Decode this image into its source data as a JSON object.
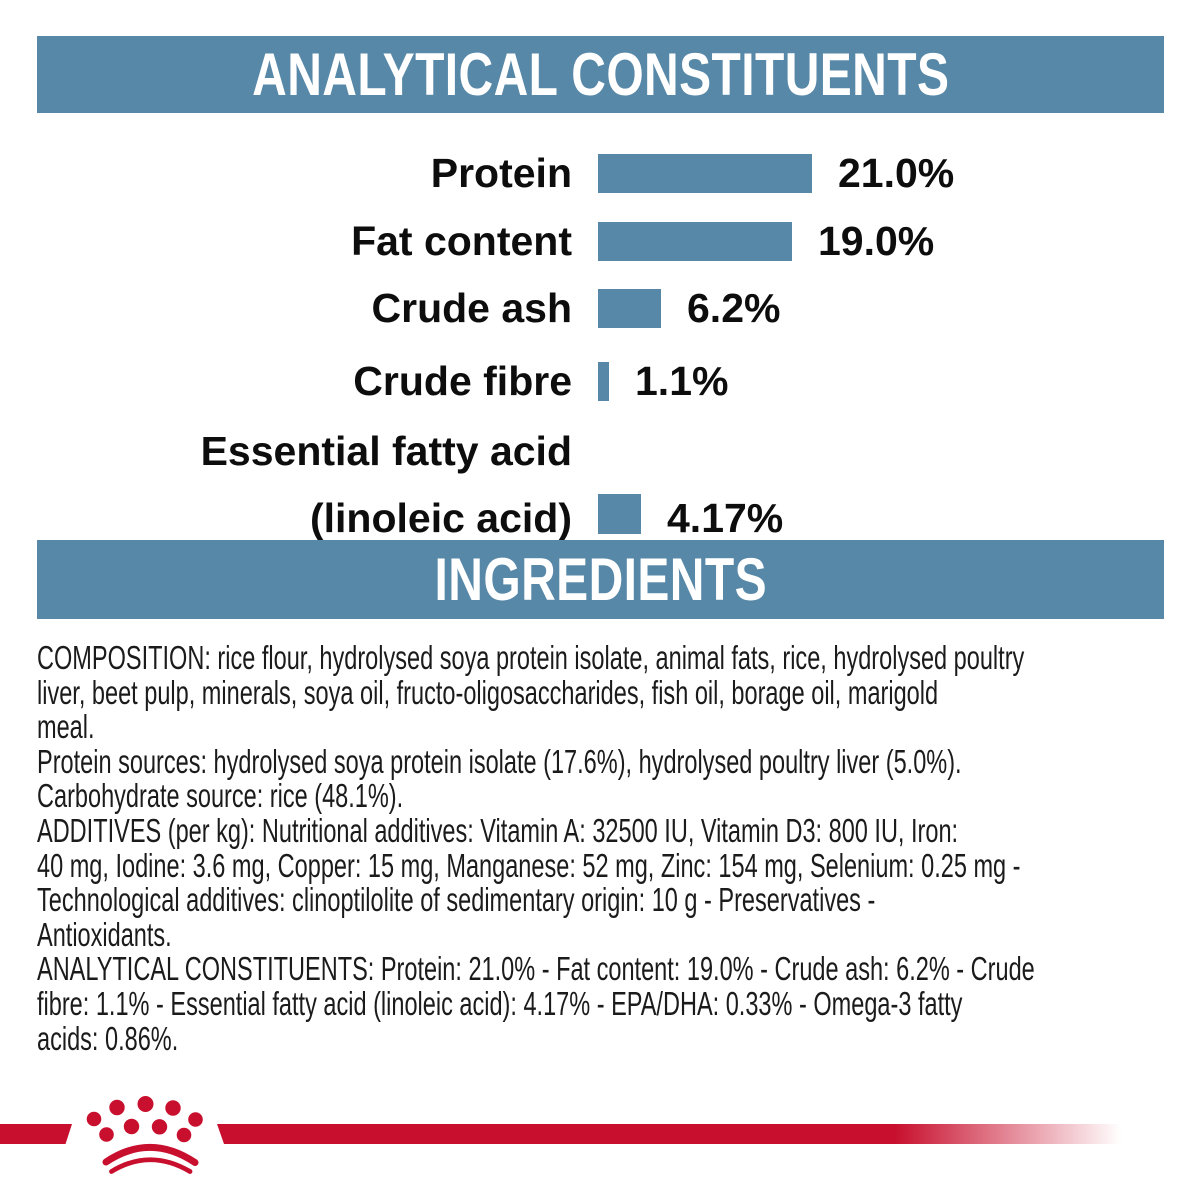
{
  "header_banner": {
    "title": "ANALYTICAL CONSTITUENTS"
  },
  "chart_data": {
    "type": "bar",
    "orientation": "horizontal",
    "title": "ANALYTICAL CONSTITUENTS",
    "unit": "%",
    "categories": [
      "Protein",
      "Fat content",
      "Crude ash",
      "Crude fibre",
      "Essential fatty acid (linoleic acid)"
    ],
    "values": [
      21.0,
      19.0,
      6.2,
      1.1,
      4.17
    ],
    "display_values": [
      "21.0%",
      "19.0%",
      "6.2%",
      "1.1%",
      "4.17%"
    ],
    "label_lines": [
      [
        "Protein"
      ],
      [
        "Fat content"
      ],
      [
        "Crude ash"
      ],
      [
        "Crude fibre"
      ],
      [
        "Essential fatty acid",
        "(linoleic acid)"
      ]
    ],
    "xlim": [
      0,
      25
    ],
    "grid": false,
    "legend": false,
    "bar_color": "#5788A8",
    "value_label_position": "right-of-bar"
  },
  "ingredients_banner": {
    "title": "INGREDIENTS"
  },
  "body_text": {
    "lines": [
      "COMPOSITION: rice flour, hydrolysed soya protein isolate, animal fats, rice, hydrolysed poultry",
      "liver, beet pulp, minerals, soya oil, fructo-oligosaccharides, fish oil, borage oil, marigold",
      "meal.",
      "Protein sources: hydrolysed soya protein isolate (17.6%), hydrolysed poultry liver (5.0%).",
      "Carbohydrate source: rice (48.1%).",
      "ADDITIVES (per kg): Nutritional additives: Vitamin A: 32500 IU, Vitamin D3: 800 IU, Iron:",
      "40 mg, Iodine: 3.6 mg, Copper: 15 mg, Manganese: 52 mg, Zinc: 154 mg, Selenium: 0.25 mg -",
      "Technological additives: clinoptilolite of sedimentary origin: 10 g - Preservatives -",
      "Antioxidants.",
      "ANALYTICAL CONSTITUENTS: Protein: 21.0% - Fat content: 19.0% - Crude ash: 6.2% - Crude",
      "fibre: 1.1% - Essential fatty acid (linoleic acid): 4.17% - EPA/DHA: 0.33% - Omega-3 fatty",
      "acids: 0.86%."
    ]
  },
  "brand": {
    "logo": "royal-canin-crown",
    "red": "#C8102E",
    "blue": "#5788A8"
  }
}
